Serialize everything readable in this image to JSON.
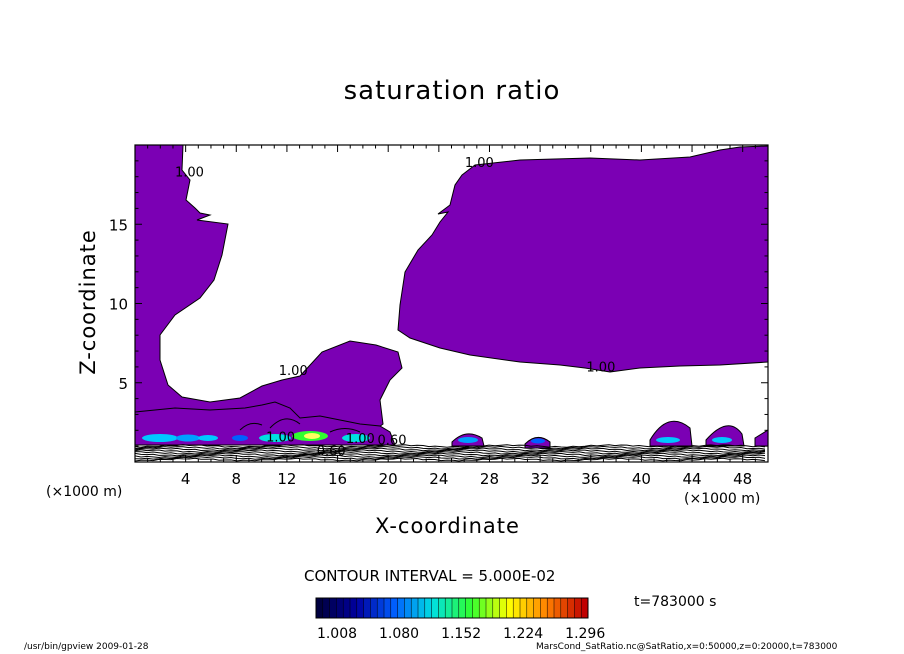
{
  "chart_data": {
    "type": "contour",
    "title": "saturation ratio",
    "xlabel": "X-coordinate",
    "ylabel": "Z-coordinate",
    "x_unit": "(×1000 m)",
    "x_ticks": [
      4,
      8,
      12,
      16,
      20,
      24,
      28,
      32,
      36,
      40,
      44,
      48
    ],
    "y_ticks": [
      5,
      10,
      15
    ],
    "xlim": [
      0,
      50
    ],
    "ylim": [
      0,
      20
    ],
    "shading_threshold": 1.0,
    "shading_color": "#7b00b4",
    "contour_labels": [
      {
        "text": "1.00",
        "x": 4.3,
        "z": 18.0
      },
      {
        "text": "1.00",
        "x": 27.2,
        "z": 18.6
      },
      {
        "text": "1.00",
        "x": 12.5,
        "z": 5.5
      },
      {
        "text": "1.00",
        "x": 36.8,
        "z": 5.7
      },
      {
        "text": "1.00",
        "x": 11.5,
        "z": 1.3
      },
      {
        "text": "1.00",
        "x": 17.8,
        "z": 1.2
      },
      {
        "text": "0.60",
        "x": 15.5,
        "z": 0.4
      },
      {
        "text": "0.60",
        "x": 20.3,
        "z": 1.1
      }
    ],
    "contour_interval_text": "CONTOUR INTERVAL = 5.000E-02",
    "colorbar": {
      "labels": [
        "1.008",
        "1.080",
        "1.152",
        "1.224",
        "1.296"
      ],
      "colors": [
        "#000040",
        "#0000a0",
        "#0060ff",
        "#00e0e0",
        "#30ff30",
        "#ffff00",
        "#ff8000",
        "#c00000"
      ]
    },
    "time_label": "t=783000 s"
  },
  "footer": {
    "left": "/usr/bin/gpview  2009-01-28",
    "right": "MarsCond_SatRatio.nc@SatRatio,x=0:50000,z=0:20000,t=783000"
  }
}
